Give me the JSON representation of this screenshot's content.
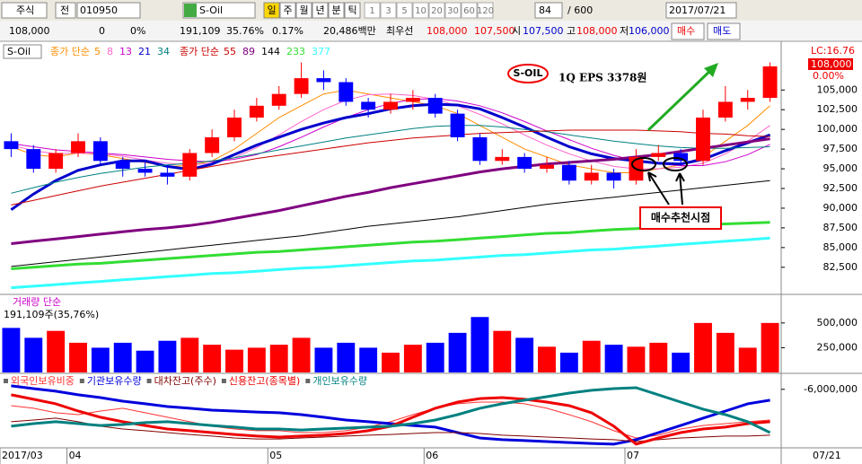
{
  "toolbar": {
    "market": "주식",
    "prev": "전",
    "code": "010950",
    "name": "S-Oil",
    "periods": [
      "일",
      "주",
      "월",
      "년",
      "분",
      "틱"
    ],
    "intervals": [
      "1",
      "3",
      "5",
      "10",
      "20",
      "30",
      "60",
      "120"
    ],
    "count": "84",
    "total": "/ 600",
    "date": "2017/07/21"
  },
  "quote": {
    "price": "108,000",
    "change": "0",
    "rate": "0%",
    "volume": "191,109",
    "turnover": "35.76%",
    "ratio": "0.17%",
    "amount": "20,486백만",
    "best_label": "최우선",
    "ask": "108,000",
    "bid": "107,500",
    "open_label": "시",
    "open": "107,500",
    "high_label": "고",
    "high": "108,000",
    "low_label": "저",
    "low": "106,000",
    "buy": "매수",
    "sell": "매도"
  },
  "chart_data": [
    {
      "type": "candlestick",
      "name": "S-Oil",
      "legend_prefix": [
        "종가 단순",
        "종가 단순"
      ],
      "categories": [
        "2017/03",
        null,
        null,
        "04",
        null,
        null,
        null,
        null,
        null,
        null,
        null,
        null,
        "05",
        null,
        null,
        null,
        null,
        null,
        null,
        "06",
        null,
        null,
        null,
        null,
        null,
        null,
        null,
        null,
        "07",
        null,
        null,
        null,
        null,
        null,
        null
      ],
      "x_end_label": "07/21",
      "open": [
        98500,
        97500,
        95000,
        97000,
        98500,
        96000,
        95000,
        94500,
        94000,
        97000,
        99000,
        101500,
        103000,
        104500,
        106500,
        106000,
        103500,
        102500,
        103500,
        104000,
        102000,
        99000,
        96000,
        96500,
        95000,
        95500,
        93500,
        94500,
        93500,
        96500,
        97000,
        96000,
        101500,
        103500,
        104000
      ],
      "high": [
        99500,
        98000,
        97500,
        99500,
        99000,
        96500,
        96000,
        95500,
        97500,
        100000,
        102500,
        104000,
        105500,
        108500,
        107500,
        106500,
        104000,
        104500,
        105000,
        104500,
        102500,
        99500,
        97500,
        97000,
        96500,
        96000,
        95500,
        95000,
        97500,
        98000,
        97500,
        102500,
        105500,
        105000,
        108500
      ],
      "low": [
        96500,
        94500,
        94500,
        96500,
        95500,
        94000,
        94000,
        93000,
        93500,
        96500,
        98500,
        101000,
        102500,
        104000,
        105000,
        103000,
        101500,
        102000,
        102500,
        101500,
        98500,
        95500,
        95500,
        94500,
        94500,
        93000,
        93000,
        92500,
        93000,
        96000,
        95500,
        95500,
        101000,
        102500,
        103500
      ],
      "close": [
        97500,
        95000,
        97000,
        98500,
        96000,
        95000,
        94500,
        94000,
        97000,
        99000,
        101500,
        103000,
        104500,
        106500,
        106000,
        103500,
        102500,
        103500,
        104000,
        102000,
        99000,
        96000,
        96500,
        95000,
        95500,
        93500,
        94500,
        93500,
        96500,
        97000,
        96000,
        101500,
        103500,
        104000,
        108000
      ],
      "up_color": "#ff0000",
      "down_color": "#0000ff",
      "series": [
        {
          "name": "5",
          "color": "#ff8c00",
          "width": 1,
          "values": [
            97800,
            96800,
            96500,
            97000,
            96800,
            96300,
            95800,
            95300,
            95400,
            96000,
            97500,
            99500,
            101500,
            103000,
            104500,
            105000,
            104500,
            104000,
            103500,
            103000,
            102000,
            100500,
            99000,
            97500,
            96500,
            95500,
            95000,
            94500,
            94500,
            95000,
            95500,
            96500,
            98500,
            100500,
            103000
          ]
        },
        {
          "name": "8",
          "color": "#ff66cc",
          "width": 1,
          "values": [
            98000,
            97300,
            96900,
            97000,
            96900,
            96600,
            96100,
            95700,
            95500,
            95700,
            96400,
            97700,
            99300,
            101000,
            102500,
            103700,
            104400,
            104500,
            104300,
            103800,
            103000,
            101900,
            100700,
            99300,
            98000,
            96900,
            96000,
            95300,
            95000,
            95000,
            95200,
            95700,
            96900,
            98500,
            100500
          ]
        },
        {
          "name": "13",
          "color": "#cc00cc",
          "width": 1,
          "values": [
            98200,
            97800,
            97400,
            97200,
            97000,
            96800,
            96500,
            96200,
            96000,
            95900,
            96200,
            96800,
            97800,
            99000,
            100300,
            101500,
            102500,
            103300,
            103800,
            103900,
            103600,
            103000,
            102100,
            101000,
            99800,
            98700,
            97600,
            96700,
            96000,
            95600,
            95400,
            95400,
            95900,
            96800,
            98100
          ]
        },
        {
          "name": "21",
          "color": "#0000cc",
          "width": 3,
          "values": [
            89800,
            91800,
            93500,
            94800,
            95500,
            96000,
            96000,
            95300,
            94900,
            95600,
            96800,
            98000,
            99000,
            100000,
            100800,
            101500,
            102000,
            102600,
            103000,
            103200,
            103100,
            102600,
            101500,
            100300,
            99000,
            97800,
            96900,
            96300,
            96000,
            95700,
            95600,
            96200,
            97300,
            98300,
            99300
          ]
        },
        {
          "name": "34",
          "color": "#008080",
          "width": 1,
          "values": [
            91900,
            92600,
            93300,
            93900,
            94400,
            94800,
            95200,
            95500,
            95700,
            96000,
            96400,
            96900,
            97400,
            97900,
            98400,
            98900,
            99300,
            99700,
            100100,
            100400,
            100500,
            100500,
            100300,
            100000,
            99700,
            99300,
            98900,
            98500,
            98200,
            97900,
            97700,
            97600,
            97600,
            97700,
            97800
          ]
        },
        {
          "name": "55",
          "color": "#cc0000",
          "width": 1,
          "values": [
            90400,
            91000,
            91600,
            92200,
            92800,
            93300,
            93800,
            94300,
            94800,
            95300,
            95800,
            96300,
            96700,
            97100,
            97500,
            97900,
            98300,
            98600,
            98900,
            99100,
            99300,
            99500,
            99600,
            99700,
            99800,
            99900,
            99900,
            99900,
            99900,
            99800,
            99700,
            99500,
            99400,
            99200,
            99100
          ]
        },
        {
          "name": "89",
          "color": "#800080",
          "width": 3,
          "values": [
            85500,
            85800,
            86100,
            86400,
            86700,
            87000,
            87300,
            87500,
            87800,
            88200,
            88700,
            89200,
            89700,
            90300,
            90900,
            91500,
            92000,
            92600,
            93100,
            93600,
            94100,
            94600,
            95000,
            95300,
            95600,
            95800,
            96000,
            96200,
            96500,
            96800,
            97200,
            97600,
            98000,
            98400,
            98800
          ]
        },
        {
          "name": "144",
          "color": "#000000",
          "width": 1,
          "values": [
            82600,
            82900,
            83200,
            83500,
            83800,
            84100,
            84400,
            84700,
            85000,
            85300,
            85600,
            85900,
            86200,
            86500,
            86900,
            87300,
            87700,
            88000,
            88300,
            88600,
            88900,
            89300,
            89700,
            90100,
            90500,
            90800,
            91100,
            91400,
            91700,
            92000,
            92300,
            92600,
            92900,
            93200,
            93500
          ]
        },
        {
          "name": "233",
          "color": "#33dd33",
          "width": 3,
          "values": [
            82300,
            82500,
            82700,
            82900,
            83000,
            83200,
            83400,
            83600,
            83800,
            84000,
            84200,
            84400,
            84500,
            84700,
            84900,
            85100,
            85300,
            85500,
            85700,
            85800,
            86000,
            86200,
            86400,
            86600,
            86800,
            86900,
            87100,
            87300,
            87400,
            87600,
            87700,
            87900,
            88000,
            88100,
            88200
          ]
        },
        {
          "name": "377",
          "color": "#33ffff",
          "width": 3,
          "values": [
            79900,
            80100,
            80300,
            80500,
            80700,
            80900,
            81100,
            81300,
            81500,
            81700,
            81800,
            82000,
            82200,
            82400,
            82500,
            82700,
            82900,
            83100,
            83300,
            83400,
            83600,
            83800,
            84000,
            84100,
            84300,
            84500,
            84700,
            84800,
            85000,
            85200,
            85400,
            85600,
            85800,
            86000,
            86200
          ]
        }
      ],
      "ylim": [
        79400,
        110500
      ],
      "yticks": [
        {
          "value": 82500,
          "label": "82,500"
        },
        {
          "value": 85000,
          "label": "85,000"
        },
        {
          "value": 87500,
          "label": "87,500"
        },
        {
          "value": 90000,
          "label": "90,000"
        },
        {
          "value": 92500,
          "label": "92,500"
        },
        {
          "value": 95000,
          "label": "95,000"
        },
        {
          "value": 97500,
          "label": "97,500"
        },
        {
          "value": 100000,
          "label": "100,000"
        },
        {
          "value": 102500,
          "label": "102,500"
        },
        {
          "value": 105000,
          "label": "105,000"
        }
      ],
      "annotations": {
        "badge": "S-OIL",
        "note": "1Q EPS 3378원",
        "callout": "매수추천시점"
      },
      "right_labels": {
        "lc": "LC:16.76",
        "price": "108,000",
        "change": "0.00%"
      }
    },
    {
      "type": "bar",
      "title": "거래량 단순",
      "subtitle": "191,109주(35,76%)",
      "values": [
        450000,
        350000,
        420000,
        300000,
        250000,
        300000,
        220000,
        320000,
        350000,
        280000,
        230000,
        250000,
        280000,
        350000,
        250000,
        300000,
        250000,
        200000,
        280000,
        300000,
        400000,
        560000,
        420000,
        350000,
        260000,
        200000,
        320000,
        280000,
        260000,
        300000,
        200000,
        500000,
        400000,
        250000,
        500000
      ],
      "colors": [
        "#0000ff",
        "#0000ff",
        "#ff0000",
        "#ff0000",
        "#0000ff",
        "#0000ff",
        "#0000ff",
        "#0000ff",
        "#ff0000",
        "#ff0000",
        "#ff0000",
        "#ff0000",
        "#ff0000",
        "#ff0000",
        "#0000ff",
        "#0000ff",
        "#0000ff",
        "#ff0000",
        "#ff0000",
        "#0000ff",
        "#0000ff",
        "#0000ff",
        "#ff0000",
        "#0000ff",
        "#ff0000",
        "#0000ff",
        "#ff0000",
        "#0000ff",
        "#ff0000",
        "#ff0000",
        "#0000ff",
        "#ff0000",
        "#ff0000",
        "#ff0000",
        "#ff0000"
      ],
      "ylim": [
        0,
        680000
      ],
      "yticks": [
        {
          "value": 250000,
          "label": "250,000"
        },
        {
          "value": 500000,
          "label": "500,000"
        }
      ]
    },
    {
      "type": "line",
      "ylim": [
        -3600000,
        -6600000
      ],
      "yticks": [
        {
          "value": -6000000,
          "label": "-6,000,000"
        }
      ],
      "series": [
        {
          "name": "외국인보유비중",
          "color": "#ff3333",
          "width": 1,
          "values": [
            -5310000,
            -5200000,
            -5010000,
            -4930000,
            -5080000,
            -5200000,
            -5010000,
            -4820000,
            -4630000,
            -4440000,
            -4320000,
            -4250000,
            -4250000,
            -4170000,
            -4170000,
            -4250000,
            -4400000,
            -4630000,
            -4930000,
            -5200000,
            -5390000,
            -5460000,
            -5460000,
            -5390000,
            -5200000,
            -4930000,
            -4630000,
            -4250000,
            -3940000,
            -4060000,
            -4320000,
            -4470000,
            -4550000,
            -4630000,
            -4700000
          ]
        },
        {
          "name": "기관보유수량",
          "color": "#0000dd",
          "width": 3,
          "values": [
            -6150000,
            -6030000,
            -5920000,
            -5770000,
            -5650000,
            -5500000,
            -5390000,
            -5270000,
            -5200000,
            -5120000,
            -5080000,
            -5040000,
            -5010000,
            -4930000,
            -4820000,
            -4700000,
            -4630000,
            -4550000,
            -4470000,
            -4400000,
            -4170000,
            -3940000,
            -3870000,
            -3830000,
            -3790000,
            -3750000,
            -3710000,
            -3680000,
            -3870000,
            -4170000,
            -4470000,
            -4780000,
            -5080000,
            -5390000,
            -5540000
          ]
        },
        {
          "name": "대차잔고(주수)",
          "color": "#800000",
          "width": 1,
          "values": [
            -4630000,
            -4700000,
            -4780000,
            -4630000,
            -4440000,
            -4320000,
            -4250000,
            -4170000,
            -4090000,
            -4020000,
            -3940000,
            -3900000,
            -3900000,
            -3940000,
            -3980000,
            -4020000,
            -4060000,
            -4090000,
            -4130000,
            -4170000,
            -4170000,
            -4130000,
            -4060000,
            -4020000,
            -3980000,
            -3940000,
            -3900000,
            -3870000,
            -3790000,
            -3870000,
            -3940000,
            -3980000,
            -4020000,
            -4020000,
            -4060000
          ]
        },
        {
          "name": "신용잔고(종목별)",
          "color": "#ee0000",
          "width": 3,
          "values": [
            -5770000,
            -5580000,
            -5390000,
            -5080000,
            -4820000,
            -4630000,
            -4470000,
            -4320000,
            -4250000,
            -4170000,
            -4090000,
            -4020000,
            -3980000,
            -4020000,
            -4060000,
            -4130000,
            -4250000,
            -4440000,
            -4820000,
            -5200000,
            -5460000,
            -5610000,
            -5650000,
            -5580000,
            -5460000,
            -5310000,
            -5010000,
            -4440000,
            -3680000,
            -3940000,
            -4170000,
            -4320000,
            -4400000,
            -4550000,
            -4630000
          ]
        },
        {
          "name": "개인보유수량",
          "color": "#008080",
          "width": 3,
          "values": [
            -4440000,
            -4550000,
            -4630000,
            -4550000,
            -4470000,
            -4510000,
            -4590000,
            -4630000,
            -4550000,
            -4470000,
            -4400000,
            -4320000,
            -4320000,
            -4280000,
            -4320000,
            -4360000,
            -4400000,
            -4440000,
            -4550000,
            -4700000,
            -4930000,
            -5200000,
            -5390000,
            -5540000,
            -5690000,
            -5840000,
            -5960000,
            -6030000,
            -6070000,
            -5770000,
            -5460000,
            -5160000,
            -4930000,
            -4630000,
            -4170000
          ]
        }
      ]
    }
  ]
}
